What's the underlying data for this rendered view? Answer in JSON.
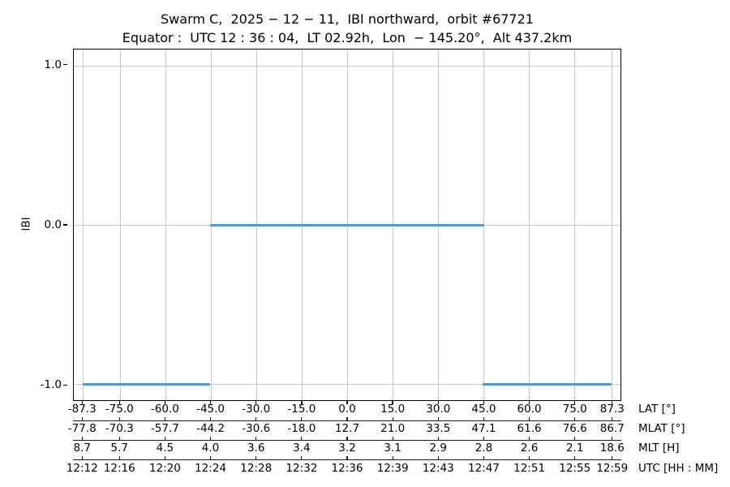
{
  "title": "Swarm C,  2025 − 12 − 11,  IBI northward,  orbit #67721",
  "subtitle": "Equator :  UTC 12 : 36 : 04,  LT 02.92h,  Lon  − 145.20°,  Alt 437.2km",
  "chart_data": {
    "type": "line",
    "title": "Swarm C, 2025-12-11, IBI northward, orbit #67721",
    "subtitle": "Equator: UTC 12:36:04, LT 02.92h, Lon -145.20°, Alt 437.2km",
    "ylabel": "IBI",
    "grid": true,
    "grid_color": "#c8c8c8",
    "line_color": "#4e9bcd",
    "ylim": [
      -1.1,
      1.1
    ],
    "xlim_lat": [
      -90.3,
      90.3
    ],
    "yticks": [
      {
        "value": 1.0,
        "label": "1.0"
      },
      {
        "value": 0.0,
        "label": "0.0"
      },
      {
        "value": -1.0,
        "label": "-1.0"
      }
    ],
    "tick_lats": [
      -87.3,
      -75.0,
      -60.0,
      -45.0,
      -30.0,
      -15.0,
      0.0,
      15.0,
      30.0,
      45.0,
      60.0,
      75.0,
      87.3
    ],
    "axis_rows": [
      {
        "name": "lat",
        "caption": "LAT [°]",
        "labels": [
          "-87.3",
          "-75.0",
          "-60.0",
          "-45.0",
          "-30.0",
          "-15.0",
          "0.0",
          "15.0",
          "30.0",
          "45.0",
          "60.0",
          "75.0",
          "87.3"
        ]
      },
      {
        "name": "mlat",
        "caption": "MLAT [°]",
        "labels": [
          "-77.8",
          "-70.3",
          "-57.7",
          "-44.2",
          "-30.6",
          "-18.0",
          "12.7",
          "21.0",
          "33.5",
          "47.1",
          "61.6",
          "76.6",
          "86.7"
        ]
      },
      {
        "name": "mlt",
        "caption": "MLT [H]",
        "labels": [
          "8.7",
          "5.7",
          "4.5",
          "4.0",
          "3.6",
          "3.4",
          "3.2",
          "3.1",
          "2.9",
          "2.8",
          "2.6",
          "2.1",
          "18.6"
        ]
      },
      {
        "name": "utc",
        "caption": "UTC [HH : MM]",
        "labels": [
          "12:12",
          "12:16",
          "12:20",
          "12:24",
          "12:28",
          "12:32",
          "12:36",
          "12:39",
          "12:43",
          "12:47",
          "12:51",
          "12:55",
          "12:59"
        ]
      }
    ],
    "series": [
      {
        "name": "IBI",
        "segments": [
          {
            "lat_start": -87.3,
            "lat_end": -45.2,
            "value": -1.0
          },
          {
            "lat_start": -45.4,
            "lat_end": 45.2,
            "value": 0.0
          },
          {
            "lat_start": 44.7,
            "lat_end": 87.3,
            "value": -1.0
          }
        ]
      }
    ]
  }
}
